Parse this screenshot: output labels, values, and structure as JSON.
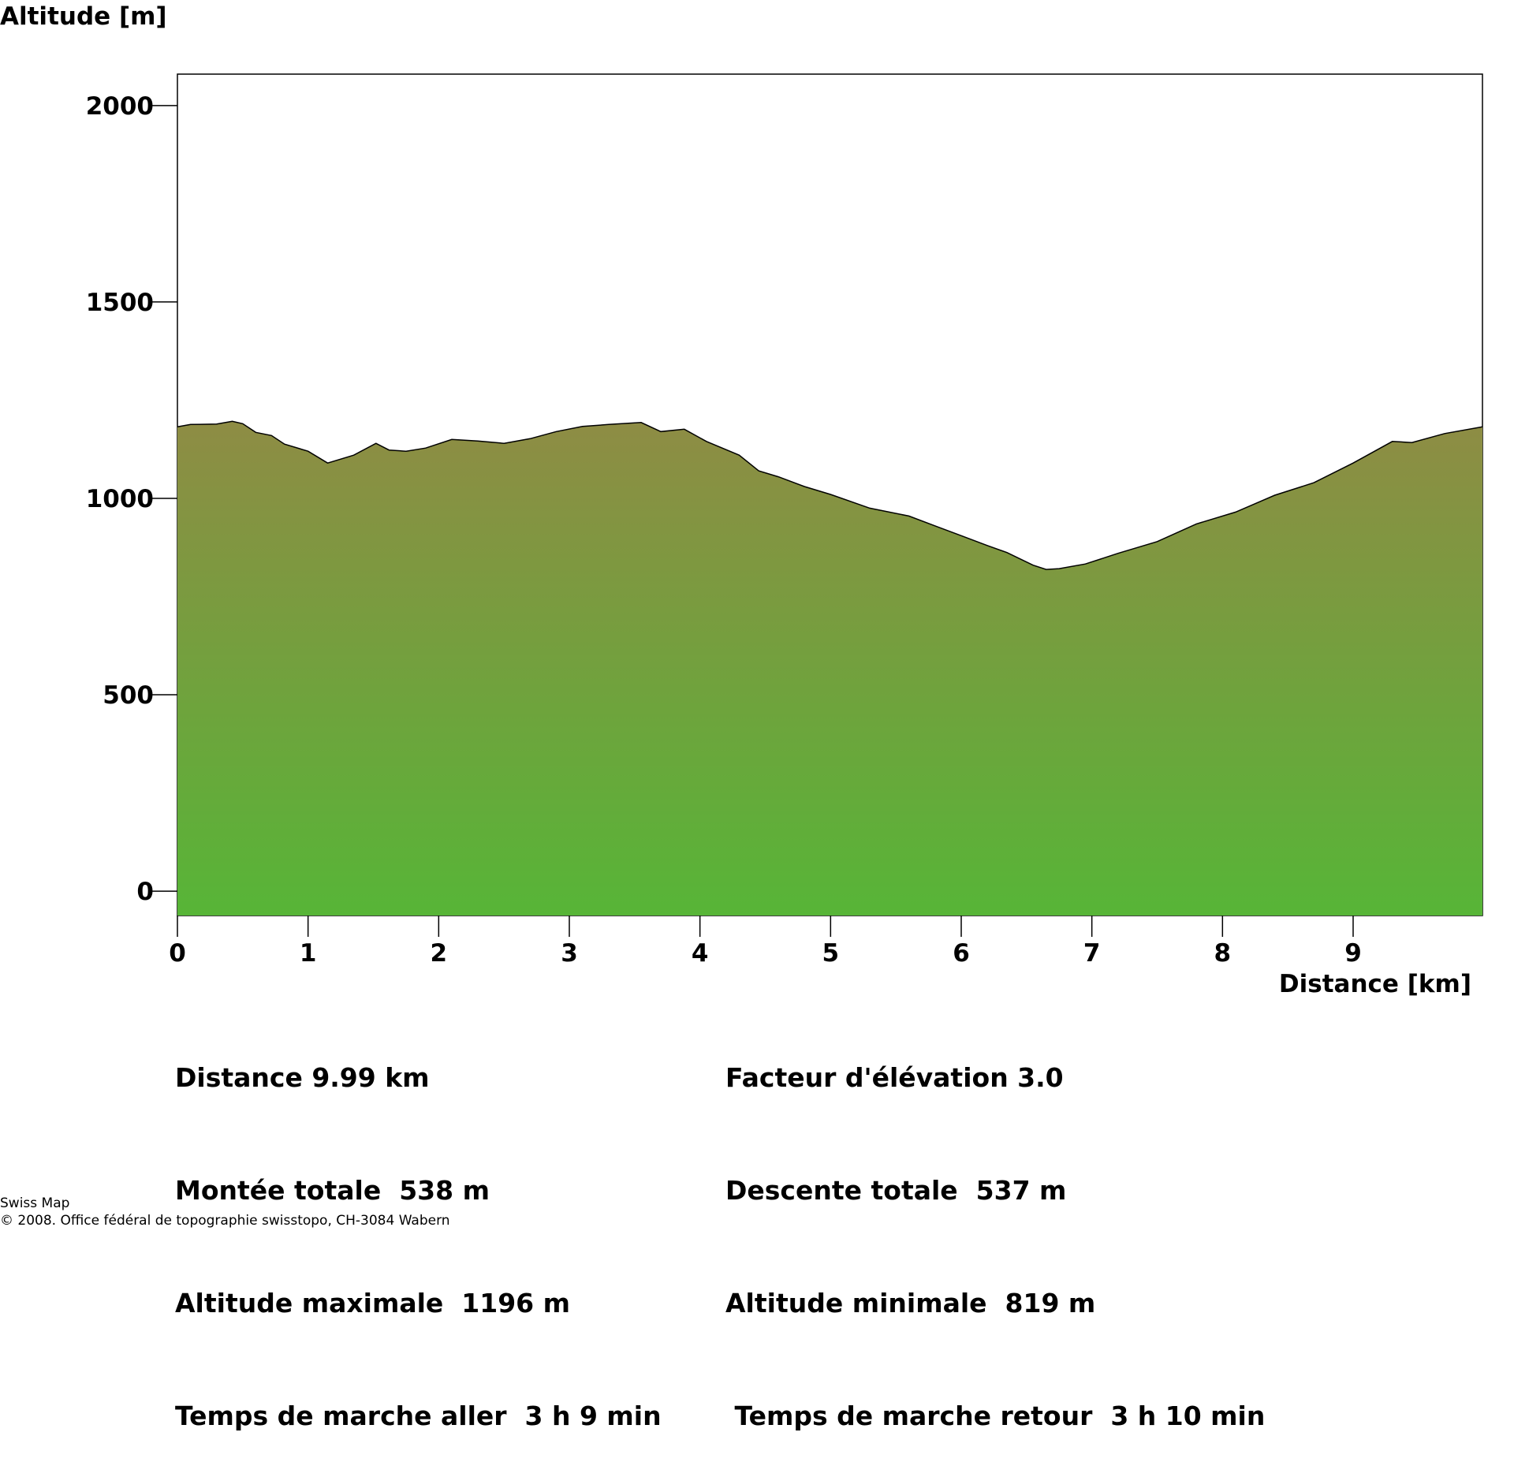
{
  "chart_data": {
    "type": "area",
    "ylabel": "Altitude [m]",
    "xlabel": "Distance [km]",
    "xlim": [
      0,
      9.99
    ],
    "ylim": [
      -62,
      2080
    ],
    "x_ticks": [
      0,
      1,
      2,
      3,
      4,
      5,
      6,
      7,
      8,
      9
    ],
    "x_tick_labels": [
      "0",
      "1",
      "2",
      "3",
      "4",
      "5",
      "6",
      "7",
      "8",
      "9"
    ],
    "y_ticks": [
      0,
      500,
      1000,
      1500,
      2000
    ],
    "y_tick_labels": [
      "0",
      "500",
      "1000",
      "1500",
      "2000"
    ],
    "grid": false,
    "colors": {
      "fill_top": "#8e8c44",
      "fill_bottom": "#57b537",
      "line": "#000000",
      "frame": "#000000"
    },
    "x": [
      0,
      0.1,
      0.3,
      0.42,
      0.5,
      0.6,
      0.72,
      0.82,
      1.0,
      1.15,
      1.35,
      1.52,
      1.62,
      1.75,
      1.9,
      2.1,
      2.3,
      2.5,
      2.7,
      2.9,
      3.1,
      3.3,
      3.55,
      3.7,
      3.88,
      4.05,
      4.3,
      4.45,
      4.6,
      4.8,
      5.0,
      5.3,
      5.6,
      5.8,
      6.0,
      6.2,
      6.35,
      6.55,
      6.65,
      6.75,
      6.95,
      7.2,
      7.5,
      7.8,
      8.1,
      8.4,
      8.7,
      9.0,
      9.3,
      9.45,
      9.7,
      9.99
    ],
    "y": [
      1182,
      1188,
      1189,
      1196,
      1190,
      1168,
      1160,
      1138,
      1120,
      1090,
      1110,
      1140,
      1123,
      1120,
      1128,
      1150,
      1146,
      1140,
      1152,
      1170,
      1183,
      1188,
      1193,
      1170,
      1176,
      1145,
      1110,
      1070,
      1055,
      1030,
      1010,
      975,
      955,
      930,
      905,
      880,
      862,
      830,
      819,
      821,
      833,
      860,
      890,
      935,
      965,
      1008,
      1040,
      1090,
      1145,
      1142,
      1165,
      1182
    ]
  },
  "stats_left": [
    "Distance 9.99 km",
    "Montée totale  538 m",
    "Altitude maximale  1196 m",
    "Temps de marche aller  3 h 9 min"
  ],
  "stats_right": [
    "Facteur d'élévation 3.0",
    "Descente totale  537 m",
    "Altitude minimale  819 m",
    " Temps de marche retour  3 h 10 min"
  ],
  "credit": {
    "line1": "Swiss Map",
    "line2": "© 2008. Office fédéral de topographie swisstopo, CH-3084 Wabern"
  }
}
